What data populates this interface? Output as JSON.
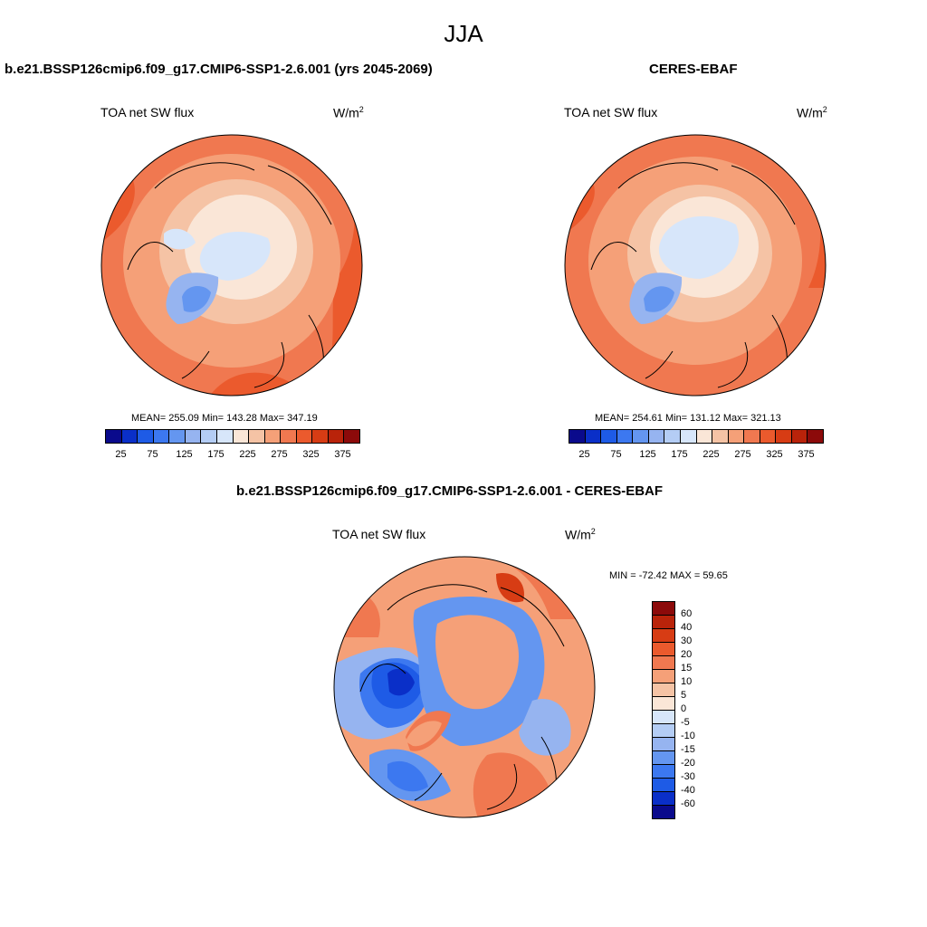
{
  "title": "JJA",
  "panels": [
    {
      "title": "b.e21.BSSP126cmip6.f09_g17.CMIP6-SSP1-2.6.001 (yrs 2045-2069)",
      "field": "TOA net SW flux",
      "units_base": "W/m",
      "units_exp": "2",
      "stats": "MEAN= 255.09  Min= 143.28  Max= 347.19"
    },
    {
      "title": "CERES-EBAF",
      "field": "TOA net SW flux",
      "units_base": "W/m",
      "units_exp": "2",
      "stats": "MEAN= 254.61  Min= 131.12  Max= 321.13"
    }
  ],
  "difference": {
    "title": "b.e21.BSSP126cmip6.f09_g17.CMIP6-SSP1-2.6.001 - CERES-EBAF",
    "field": "TOA net SW flux",
    "units_base": "W/m",
    "units_exp": "2",
    "stats": "MIN = -72.42 MAX =  59.65"
  },
  "colorbar_abs": {
    "tick_labels": [
      "25",
      "75",
      "125",
      "175",
      "225",
      "275",
      "325",
      "375"
    ],
    "colors": [
      "#0a0a8c",
      "#0a2fc8",
      "#1e5be6",
      "#3c78f0",
      "#6496f0",
      "#96b4f0",
      "#b4cdf5",
      "#d7e6fa",
      "#fae6d7",
      "#f5c3a5",
      "#f5a078",
      "#f07850",
      "#eb5a2d",
      "#d73c14",
      "#b9230a",
      "#8c0a0a"
    ]
  },
  "colorbar_diff": {
    "tick_labels": [
      "60",
      "40",
      "30",
      "20",
      "15",
      "10",
      "5",
      "0",
      "-5",
      "-10",
      "-15",
      "-20",
      "-30",
      "-40",
      "-60"
    ],
    "colors": [
      "#8c0a0a",
      "#b9230a",
      "#d73c14",
      "#eb5a2d",
      "#f07850",
      "#f5a078",
      "#f5c3a5",
      "#fae6d7",
      "#d7e6fa",
      "#b4cdf5",
      "#96b4f0",
      "#6496f0",
      "#3c78f0",
      "#1e5be6",
      "#0a2fc8",
      "#0a0a8c"
    ]
  }
}
